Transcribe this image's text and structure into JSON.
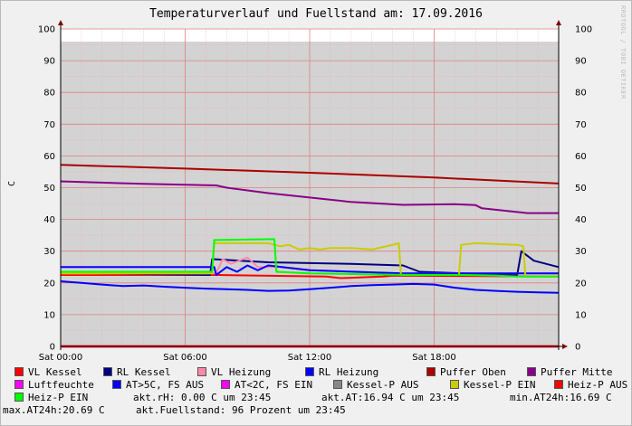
{
  "title": "Temperaturverlauf und Fuellstand am: 17.09.2016",
  "watermark": "RRDTOOL / TOBI OETIKER",
  "ylabel": "C",
  "chart_data": {
    "type": "line",
    "title": "Temperaturverlauf und Fuellstand am: 17.09.2016",
    "ylabel": "C",
    "ylim": [
      0,
      100
    ],
    "xlim": [
      0,
      24
    ],
    "grid": true,
    "y_ticks": [
      0,
      10,
      20,
      30,
      40,
      50,
      60,
      70,
      80,
      90,
      100
    ],
    "x_ticks": [
      {
        "x": 0,
        "label": "Sat 00:00"
      },
      {
        "x": 6,
        "label": "Sat 06:00"
      },
      {
        "x": 12,
        "label": "Sat 12:00"
      },
      {
        "x": 18,
        "label": "Sat 18:00"
      }
    ],
    "fill": {
      "name": "Fuellstand",
      "color": "#d3d3d3",
      "x": [
        0,
        24
      ],
      "values": [
        96,
        96
      ]
    },
    "series": [
      {
        "name": "VL Kessel",
        "color": "#ff0000",
        "x": [
          0,
          7.5,
          7.6,
          12.8,
          13.5,
          15.5,
          16.0,
          24
        ],
        "values": [
          22.5,
          22.5,
          22.5,
          22.0,
          21.5,
          22.0,
          22.3,
          22.0
        ]
      },
      {
        "name": "RL Kessel",
        "color": "#000080",
        "x": [
          0,
          2,
          7.2,
          7.3,
          10,
          14,
          16.5,
          17.3,
          19.5,
          22.0,
          22.2,
          22.8,
          24
        ],
        "values": [
          23.5,
          23.0,
          22.5,
          27.5,
          26.5,
          26.0,
          25.5,
          23.5,
          23.0,
          22.5,
          30.0,
          27.0,
          25.0
        ]
      },
      {
        "name": "VL Heizung",
        "color": "#ff88aa",
        "x": [
          0,
          7.5,
          7.8,
          8.2,
          9.0,
          9.5,
          10.5,
          12.0,
          14.0,
          16.0,
          24
        ],
        "values": [
          23.0,
          23.0,
          27.5,
          26.0,
          28.0,
          25.0,
          25.0,
          24.0,
          23.5,
          23.0,
          23.0
        ]
      },
      {
        "name": "RL Heizung",
        "color": "#0000ff",
        "x": [
          0,
          7.4,
          7.5,
          8.0,
          8.5,
          9.0,
          9.5,
          10.0,
          12.0,
          16.5,
          24
        ],
        "values": [
          25.0,
          25.0,
          22.5,
          25.0,
          23.5,
          25.5,
          24.0,
          25.5,
          24.0,
          23.0,
          23.0
        ]
      },
      {
        "name": "Puffer Oben",
        "color": "#aa0000",
        "x": [
          0,
          6,
          12,
          18,
          24
        ],
        "values": [
          57.2,
          56.0,
          54.7,
          53.2,
          51.3
        ]
      },
      {
        "name": "Puffer Mitte",
        "color": "#880088",
        "x": [
          0,
          4,
          7.5,
          8.0,
          10.0,
          14.0,
          16.5,
          19.0,
          20.0,
          20.3,
          22.5,
          24
        ],
        "values": [
          52.0,
          51.2,
          50.7,
          50.0,
          48.3,
          45.5,
          44.6,
          44.8,
          44.5,
          43.5,
          42.0,
          42.0
        ]
      },
      {
        "name": "AT>5C, FS AUS",
        "color": "#0000ff",
        "x": [
          0,
          1,
          2,
          3,
          4,
          5,
          6,
          7,
          8,
          9,
          10,
          11,
          12,
          13,
          14,
          15,
          16,
          17,
          18,
          19,
          20,
          21,
          22,
          23,
          24
        ],
        "values": [
          20.5,
          20.0,
          19.5,
          19.0,
          19.2,
          18.8,
          18.5,
          18.2,
          18.0,
          17.8,
          17.5,
          17.6,
          18.0,
          18.5,
          19.0,
          19.3,
          19.5,
          19.7,
          19.5,
          18.5,
          17.8,
          17.5,
          17.2,
          17.0,
          16.9
        ]
      },
      {
        "name": "AT<2C, FS EIN",
        "color": "#ff00ff",
        "x": [
          0,
          24
        ],
        "values": [
          0,
          0
        ]
      },
      {
        "name": "Kessel-P AUS",
        "color": "#888888",
        "x": [
          0,
          24
        ],
        "values": [
          0,
          0
        ]
      },
      {
        "name": "Kessel-P EIN",
        "color": "#cccc00",
        "x": [
          0,
          7.3,
          7.4,
          10.0,
          10.6,
          11.0,
          11.5,
          12.0,
          12.5,
          13.0,
          14.0,
          15.0,
          16.0,
          16.3,
          16.4,
          19.2,
          19.3,
          20.0,
          22.0,
          22.3,
          22.4,
          24
        ],
        "values": [
          23.0,
          23.0,
          32.5,
          32.5,
          31.5,
          32.0,
          30.5,
          31.0,
          30.5,
          31.0,
          31.0,
          30.5,
          32.0,
          32.5,
          22.5,
          22.5,
          32.0,
          32.5,
          32.0,
          31.5,
          22.0,
          22.0
        ]
      },
      {
        "name": "Heiz-P AUS",
        "color": "#ff0000",
        "x": [
          0,
          24
        ],
        "values": [
          0,
          0
        ]
      },
      {
        "name": "Heiz-P EIN",
        "color": "#00ff00",
        "x": [
          0,
          7.3,
          7.4,
          10.3,
          10.4,
          12.0,
          14.0,
          16.0,
          19.5,
          21.0,
          22.0,
          24
        ],
        "values": [
          23.5,
          23.5,
          33.5,
          33.8,
          23.5,
          23.0,
          22.8,
          22.6,
          22.5,
          22.3,
          22.0,
          22.0
        ]
      }
    ]
  },
  "legend": {
    "items": [
      {
        "label": "VL Kessel",
        "color": "#ff0000"
      },
      {
        "label": "RL Kessel",
        "color": "#000080"
      },
      {
        "label": "VL Heizung",
        "color": "#ff88aa"
      },
      {
        "label": "RL Heizung",
        "color": "#0000ff"
      },
      {
        "label": "Puffer Oben",
        "color": "#aa0000"
      },
      {
        "label": "Puffer Mitte",
        "color": "#880088"
      },
      {
        "label": "Luftfeuchte",
        "color": "#ff00ff"
      },
      {
        "label": "AT>5C, FS AUS",
        "color": "#0000ff"
      },
      {
        "label": "AT<2C, FS EIN",
        "color": "#ff00ff"
      },
      {
        "label": "Kessel-P AUS",
        "color": "#888888"
      },
      {
        "label": "Kessel-P EIN",
        "color": "#cccc00"
      },
      {
        "label": "Heiz-P AUS",
        "color": "#ff0000"
      },
      {
        "label": "Heiz-P EIN",
        "color": "#00ff00"
      }
    ],
    "status": {
      "rh": "akt.rH: 0.00 C um 23:45",
      "at": "akt.AT:16.94 C um 23:45",
      "min": "min.AT24h:16.69 C",
      "max": "max.AT24h:20.69 C",
      "fuell": "akt.Fuellstand:   96 Prozent um 23:45"
    }
  }
}
